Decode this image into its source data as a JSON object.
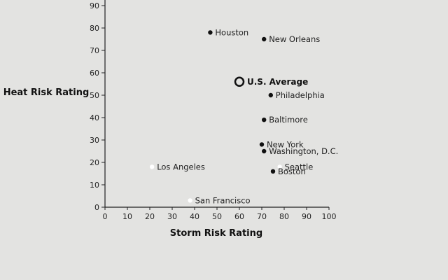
{
  "chart_data": {
    "type": "scatter",
    "xlabel": "Storm Risk Rating",
    "ylabel": "Heat Risk Rating",
    "xlim": [
      0,
      100
    ],
    "ylim": [
      0,
      90
    ],
    "xticks": [
      0,
      10,
      20,
      30,
      40,
      50,
      60,
      70,
      80,
      90,
      100
    ],
    "yticks": [
      0,
      10,
      20,
      30,
      40,
      50,
      60,
      70,
      80,
      90
    ],
    "colors": {
      "dark": "#111111",
      "light": "#ffffff",
      "axis": "#222222",
      "background": "#e3e3e1"
    },
    "points": [
      {
        "name": "Houston",
        "x": 47,
        "y": 78,
        "style": "dark"
      },
      {
        "name": "New Orleans",
        "x": 71,
        "y": 75,
        "style": "dark"
      },
      {
        "name": "U.S. Average",
        "x": 60,
        "y": 56,
        "style": "average"
      },
      {
        "name": "Philadelphia",
        "x": 74,
        "y": 50,
        "style": "dark"
      },
      {
        "name": "Baltimore",
        "x": 71,
        "y": 39,
        "style": "dark"
      },
      {
        "name": "New York",
        "x": 70,
        "y": 28,
        "style": "dark"
      },
      {
        "name": "Washington, D.C.",
        "x": 71,
        "y": 25,
        "style": "dark"
      },
      {
        "name": "Los Angeles",
        "x": 21,
        "y": 18,
        "style": "light"
      },
      {
        "name": "Seattle",
        "x": 78,
        "y": 18,
        "style": "light"
      },
      {
        "name": "Boston",
        "x": 75,
        "y": 16,
        "style": "dark"
      },
      {
        "name": "San Francisco",
        "x": 38,
        "y": 3,
        "style": "light"
      }
    ]
  }
}
